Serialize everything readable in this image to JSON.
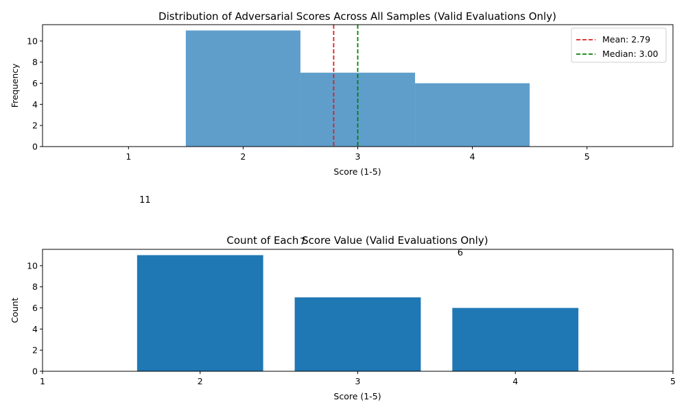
{
  "chart_data": [
    {
      "type": "histogram",
      "title": "Distribution of Adversarial Scores Across All Samples (Valid Evaluations Only)",
      "xlabel": "Score (1-5)",
      "ylabel": "Frequency",
      "xlim": [
        0.25,
        5.75
      ],
      "ylim": [
        0,
        11.55
      ],
      "xticks": [
        "1",
        "2",
        "3",
        "4",
        "5"
      ],
      "yticks": [
        "0",
        "2",
        "4",
        "6",
        "8",
        "10"
      ],
      "bins": [
        {
          "from": 0.5,
          "to": 1.5,
          "count": 0
        },
        {
          "from": 1.5,
          "to": 2.5,
          "count": 11
        },
        {
          "from": 2.5,
          "to": 3.5,
          "count": 7
        },
        {
          "from": 3.5,
          "to": 4.5,
          "count": 6
        },
        {
          "from": 4.5,
          "to": 5.5,
          "count": 0
        }
      ],
      "bar_color": "#5f9ecb",
      "reference_lines": [
        {
          "label": "Mean: 2.79",
          "value": 2.79,
          "color": "#e41a1c"
        },
        {
          "label": "Median: 3.00",
          "value": 3.0,
          "color": "#008000"
        }
      ],
      "legend_position": "top-right",
      "grid": false
    },
    {
      "type": "bar",
      "title": "Count of Each Score Value (Valid Evaluations Only)",
      "xlabel": "Score (1-5)",
      "ylabel": "Count",
      "xlim": [
        1,
        5
      ],
      "ylim": [
        0,
        11.55
      ],
      "xticks": [
        "1",
        "2",
        "3",
        "4",
        "5"
      ],
      "yticks": [
        "0",
        "2",
        "4",
        "6",
        "8",
        "10"
      ],
      "categories": [
        2,
        3,
        4
      ],
      "values": [
        11,
        7,
        6
      ],
      "data_labels": [
        "11",
        "7",
        "6"
      ],
      "bar_color": "#1f77b4",
      "grid": false
    }
  ]
}
